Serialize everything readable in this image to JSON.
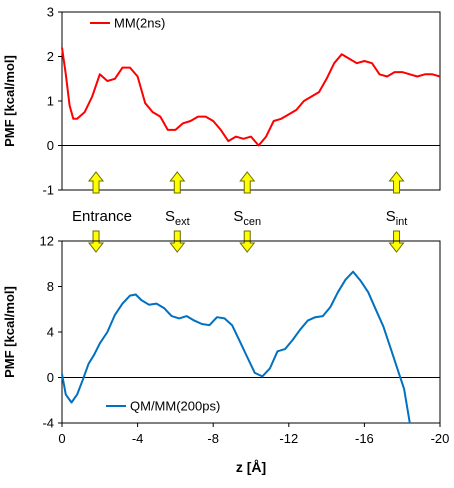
{
  "chart_data": [
    {
      "type": "line",
      "ylabel": "PMF [kcal/mol]",
      "xlim": [
        0,
        -20
      ],
      "ylim": [
        -1,
        3
      ],
      "yticks": [
        "-1",
        "0",
        "1",
        "2",
        "3"
      ],
      "grid": false,
      "legend_position": "top-left",
      "series": [
        {
          "name": "MM(2ns)",
          "color": "#ff0000",
          "x": [
            0,
            -0.2,
            -0.4,
            -0.6,
            -0.8,
            -1.2,
            -1.6,
            -2.0,
            -2.4,
            -2.8,
            -3.2,
            -3.6,
            -4.0,
            -4.4,
            -4.8,
            -5.2,
            -5.6,
            -6.0,
            -6.4,
            -6.8,
            -7.2,
            -7.6,
            -8.0,
            -8.4,
            -8.8,
            -9.2,
            -9.6,
            -10.0,
            -10.4,
            -10.8,
            -11.2,
            -11.6,
            -12.0,
            -12.4,
            -12.8,
            -13.2,
            -13.6,
            -14.0,
            -14.4,
            -14.8,
            -15.2,
            -15.6,
            -16.0,
            -16.4,
            -16.8,
            -17.2,
            -17.6,
            -18.0,
            -18.4,
            -18.8,
            -19.2,
            -19.6,
            -20.0
          ],
          "y": [
            2.2,
            1.6,
            0.9,
            0.6,
            0.6,
            0.75,
            1.1,
            1.6,
            1.45,
            1.5,
            1.75,
            1.75,
            1.55,
            0.95,
            0.75,
            0.65,
            0.35,
            0.35,
            0.5,
            0.55,
            0.65,
            0.65,
            0.55,
            0.35,
            0.1,
            0.2,
            0.15,
            0.2,
            0.0,
            0.2,
            0.55,
            0.6,
            0.7,
            0.8,
            1.0,
            1.1,
            1.2,
            1.5,
            1.85,
            2.05,
            1.95,
            1.85,
            1.9,
            1.85,
            1.6,
            1.55,
            1.65,
            1.65,
            1.6,
            1.55,
            1.6,
            1.6,
            1.55
          ]
        }
      ]
    },
    {
      "type": "line",
      "ylabel": "PMF [kcal/mol]",
      "xlabel": "z [Å]",
      "xlim": [
        0,
        -20
      ],
      "ylim": [
        -4,
        12
      ],
      "xticks": [
        "0",
        "-4",
        "-8",
        "-12",
        "-16",
        "-20"
      ],
      "yticks": [
        "-4",
        "0",
        "4",
        "8",
        "12"
      ],
      "grid": false,
      "legend_position": "bottom-left",
      "series": [
        {
          "name": "QM/MM(200ps)",
          "color": "#0070c0",
          "x": [
            0,
            -0.2,
            -0.5,
            -0.8,
            -1.1,
            -1.4,
            -1.7,
            -2.0,
            -2.4,
            -2.8,
            -3.2,
            -3.6,
            -3.9,
            -4.2,
            -4.6,
            -5.0,
            -5.4,
            -5.8,
            -6.2,
            -6.6,
            -7.0,
            -7.4,
            -7.8,
            -8.2,
            -8.6,
            -9.0,
            -9.4,
            -9.8,
            -10.2,
            -10.6,
            -11.0,
            -11.4,
            -11.8,
            -12.2,
            -12.6,
            -13.0,
            -13.4,
            -13.8,
            -14.2,
            -14.6,
            -15.0,
            -15.4,
            -15.8,
            -16.2,
            -16.6,
            -17.0,
            -17.4,
            -17.8,
            -18.1,
            -18.4
          ],
          "y": [
            0.3,
            -1.5,
            -2.2,
            -1.5,
            -0.2,
            1.2,
            2.0,
            3.0,
            4.0,
            5.5,
            6.5,
            7.2,
            7.3,
            6.8,
            6.4,
            6.5,
            6.1,
            5.4,
            5.2,
            5.4,
            5.0,
            4.7,
            4.6,
            5.3,
            5.2,
            4.6,
            3.2,
            1.8,
            0.4,
            0.1,
            0.8,
            2.3,
            2.5,
            3.3,
            4.2,
            5.0,
            5.3,
            5.4,
            6.2,
            7.5,
            8.6,
            9.3,
            8.5,
            7.5,
            6.0,
            4.5,
            2.5,
            0.5,
            -1.0,
            -4.0
          ]
        }
      ]
    }
  ],
  "sites": {
    "entrance": "Entrance",
    "ext_main": "S",
    "ext_sub": "ext",
    "cen_main": "S",
    "cen_sub": "cen",
    "int_main": "S",
    "int_sub": "int"
  },
  "sites_z": {
    "entrance": -1.8,
    "ext": -6.1,
    "cen": -9.8,
    "int": -17.7
  },
  "arrow_color": "#ffff00"
}
